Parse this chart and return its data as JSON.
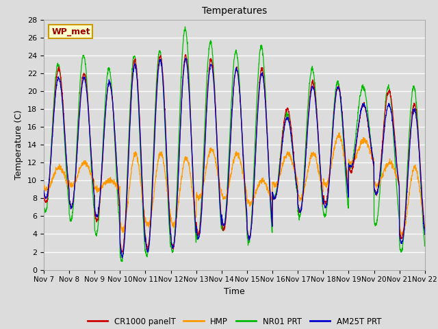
{
  "title": "Temperatures",
  "xlabel": "Time",
  "ylabel": "Temperature (C)",
  "ylim": [
    0,
    28
  ],
  "xlim": [
    0,
    360
  ],
  "background_color": "#dcdcdc",
  "plot_bg_color": "#dcdcdc",
  "grid_color": "#ffffff",
  "legend_labels": [
    "CR1000 panelT",
    "HMP",
    "NR01 PRT",
    "AM25T PRT"
  ],
  "legend_colors": [
    "#cc0000",
    "#ff9900",
    "#00bb00",
    "#0000cc"
  ],
  "annotation_text": "WP_met",
  "annotation_bg": "#ffffcc",
  "annotation_border": "#cc9900",
  "annotation_text_color": "#990000",
  "x_tick_labels": [
    "Nov 7",
    "Nov 8",
    "Nov 9",
    "Nov 10",
    "Nov 11",
    "Nov 12",
    "Nov 13",
    "Nov 14",
    "Nov 15",
    "Nov 16",
    "Nov 17",
    "Nov 18",
    "Nov 19",
    "Nov 20",
    "Nov 21",
    "Nov 22"
  ],
  "x_tick_positions": [
    0,
    24,
    48,
    72,
    96,
    120,
    144,
    168,
    192,
    216,
    240,
    264,
    288,
    312,
    336,
    360
  ],
  "day_peaks_red": [
    22.5,
    22.0,
    21.0,
    23.5,
    24.0,
    24.0,
    23.5,
    22.5,
    22.5,
    18.0,
    21.0,
    20.5,
    18.5,
    20.0,
    18.5,
    21.0
  ],
  "day_peaks_green": [
    23.0,
    24.0,
    22.5,
    24.0,
    24.5,
    27.0,
    25.5,
    24.5,
    25.0,
    17.5,
    22.5,
    21.0,
    20.5,
    20.5,
    20.5,
    21.0
  ],
  "day_peaks_orange": [
    11.5,
    12.0,
    10.0,
    13.0,
    13.0,
    12.5,
    13.5,
    13.0,
    10.0,
    13.0,
    13.0,
    15.0,
    14.5,
    12.0,
    11.5,
    11.5
  ],
  "day_peaks_blue": [
    21.5,
    21.5,
    21.0,
    23.0,
    23.5,
    23.5,
    23.0,
    22.5,
    22.0,
    17.0,
    20.5,
    20.5,
    18.5,
    18.5,
    18.0,
    18.0
  ],
  "day_mins_red": [
    7.5,
    7.0,
    5.5,
    2.0,
    2.5,
    2.5,
    4.0,
    4.5,
    3.5,
    8.0,
    6.5,
    7.5,
    11.0,
    8.5,
    3.5,
    3.0
  ],
  "day_mins_green": [
    6.5,
    5.5,
    4.0,
    1.0,
    1.5,
    2.0,
    3.5,
    4.5,
    3.0,
    8.0,
    6.0,
    6.0,
    11.5,
    5.0,
    2.0,
    2.5
  ],
  "day_mins_orange": [
    9.0,
    9.5,
    9.0,
    4.5,
    5.0,
    5.0,
    8.0,
    8.0,
    7.5,
    9.5,
    8.0,
    9.5,
    12.0,
    9.5,
    4.0,
    4.0
  ],
  "day_mins_blue": [
    8.0,
    7.0,
    6.0,
    1.5,
    2.0,
    2.5,
    3.5,
    5.0,
    3.5,
    8.0,
    6.5,
    7.0,
    11.5,
    8.5,
    3.0,
    3.0
  ]
}
